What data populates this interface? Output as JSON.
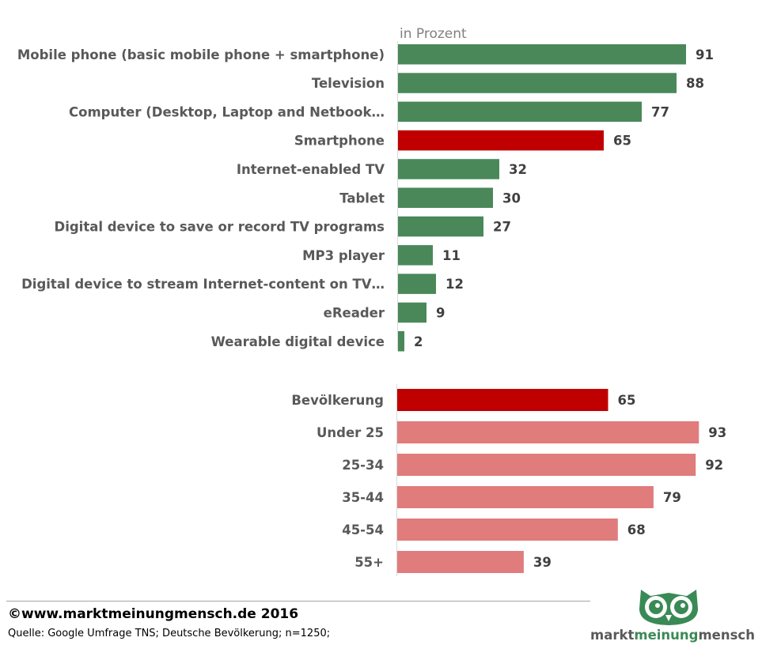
{
  "chart_data": [
    {
      "type": "bar",
      "orientation": "horizontal",
      "unit_label": "in Prozent",
      "categories": [
        "Mobile phone (basic mobile phone + smartphone)",
        "Television",
        "Computer (Desktop, Laptop and Netbook…",
        "Smartphone",
        "Internet-enabled TV",
        "Tablet",
        "Digital device to save or record TV programs",
        "MP3 player",
        "Digital device to stream Internet-content on TV…",
        "eReader",
        "Wearable digital device"
      ],
      "values": [
        91,
        88,
        77,
        65,
        32,
        30,
        27,
        11,
        12,
        9,
        2
      ],
      "colors": [
        "#4a885a",
        "#4a885a",
        "#4a885a",
        "#c00000",
        "#4a885a",
        "#4a885a",
        "#4a885a",
        "#4a885a",
        "#4a885a",
        "#4a885a",
        "#4a885a"
      ],
      "xlim": [
        0,
        100
      ],
      "grid": false
    },
    {
      "type": "bar",
      "orientation": "horizontal",
      "categories": [
        "Bevölkerung",
        "Under 25",
        "25-34",
        "35-44",
        "45-54",
        "55+"
      ],
      "values": [
        65,
        93,
        92,
        79,
        68,
        39
      ],
      "colors": [
        "#c00000",
        "#e07c7c",
        "#e07c7c",
        "#e07c7c",
        "#e07c7c",
        "#e07c7c"
      ],
      "xlim": [
        0,
        100
      ],
      "grid": false
    }
  ],
  "footer": {
    "copyright": "©www.marktmeinungmensch.de 2016",
    "source": "Quelle: Google Umfrage TNS; Deutsche Bevölkerung; n=1250;"
  },
  "logo": {
    "part1": "markt",
    "part2": "meinung",
    "part3": "mensch",
    "owl_color": "#3a8a55"
  }
}
